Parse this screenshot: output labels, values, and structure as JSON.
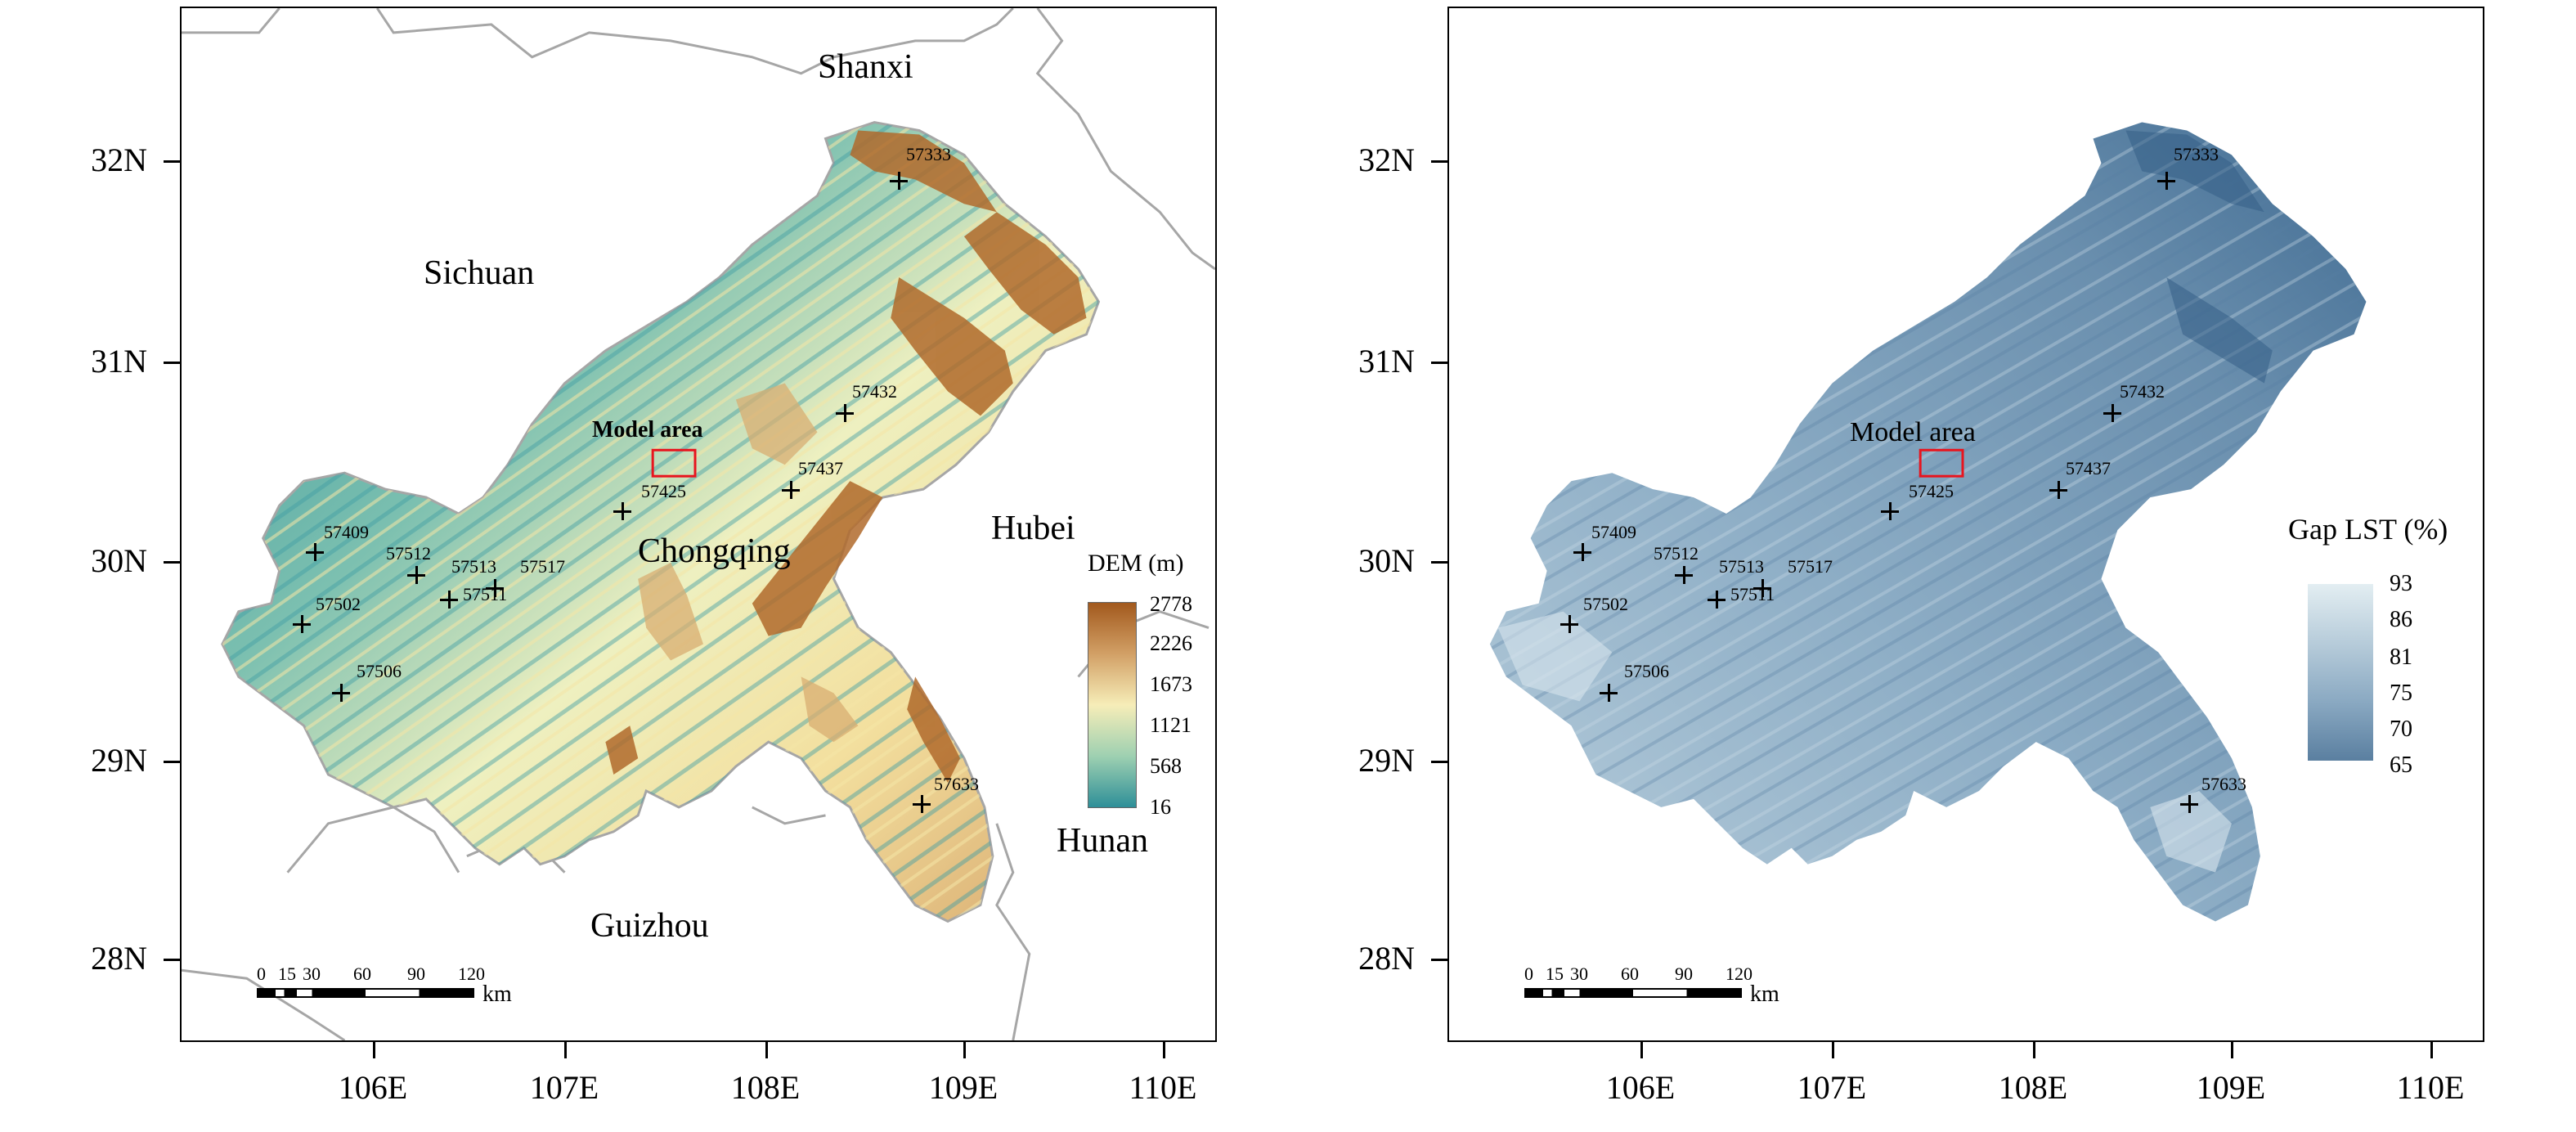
{
  "lat_labels": [
    "32N",
    "31N",
    "30N",
    "29N",
    "28N"
  ],
  "lon_labels": [
    "106E",
    "107E",
    "108E",
    "109E",
    "110E"
  ],
  "left_map": {
    "provinces": {
      "shanxi": "Shanxi",
      "sichuan": "Sichuan",
      "chongqing": "Chongqing",
      "hubei": "Hubei",
      "guizhou": "Guizhou",
      "hunan": "Hunan"
    },
    "model_area_label": "Model area",
    "legend": {
      "title": "DEM (m)",
      "ticks": [
        "2778",
        "2226",
        "1673",
        "1121",
        "568",
        "16"
      ],
      "colors": [
        "#a2591d",
        "#d2a066",
        "#f6edb8",
        "#9ed0b1",
        "#2e8f98"
      ]
    }
  },
  "right_map": {
    "model_area_label": "Model area",
    "legend": {
      "title": "Gap LST (%)",
      "ticks": [
        "93",
        "86",
        "81",
        "75",
        "70",
        "65"
      ],
      "colors": [
        "#e3eef2",
        "#b7ccda",
        "#8aa9c2",
        "#5a7fa0"
      ]
    }
  },
  "stations": [
    "57333",
    "57432",
    "57437",
    "57425",
    "57409",
    "57512",
    "57513",
    "57517",
    "57511",
    "57502",
    "57506",
    "57633"
  ],
  "scale_bar": {
    "ticks": [
      "0",
      "15",
      "30",
      "60",
      "90",
      "120"
    ],
    "unit": "km"
  },
  "colors": {
    "model_area_box": "#e8141e",
    "border_gray": "#a6a6a6"
  }
}
